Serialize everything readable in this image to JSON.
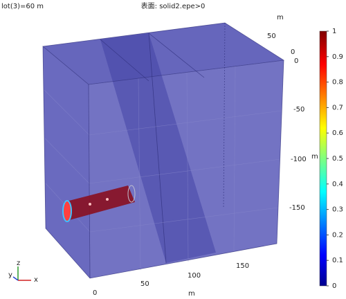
{
  "header": {
    "plot_label": "lot(3)=60 m",
    "title": "表面: solid2.epe>0"
  },
  "axes": {
    "z_ticks": [
      "0",
      "-50",
      "-100",
      "-150"
    ],
    "z_unit": "m",
    "y_ticks": [
      "50",
      "0"
    ],
    "y_unit": "m",
    "x_ticks": [
      "0",
      "50",
      "100",
      "150"
    ],
    "x_unit": "m",
    "triad": {
      "z": "z",
      "y": "y",
      "x": "x"
    }
  },
  "colorbar": {
    "ticks": [
      0,
      0.1,
      0.2,
      0.3,
      0.4,
      0.5,
      0.6,
      0.7,
      0.8,
      0.9,
      1
    ]
  }
}
